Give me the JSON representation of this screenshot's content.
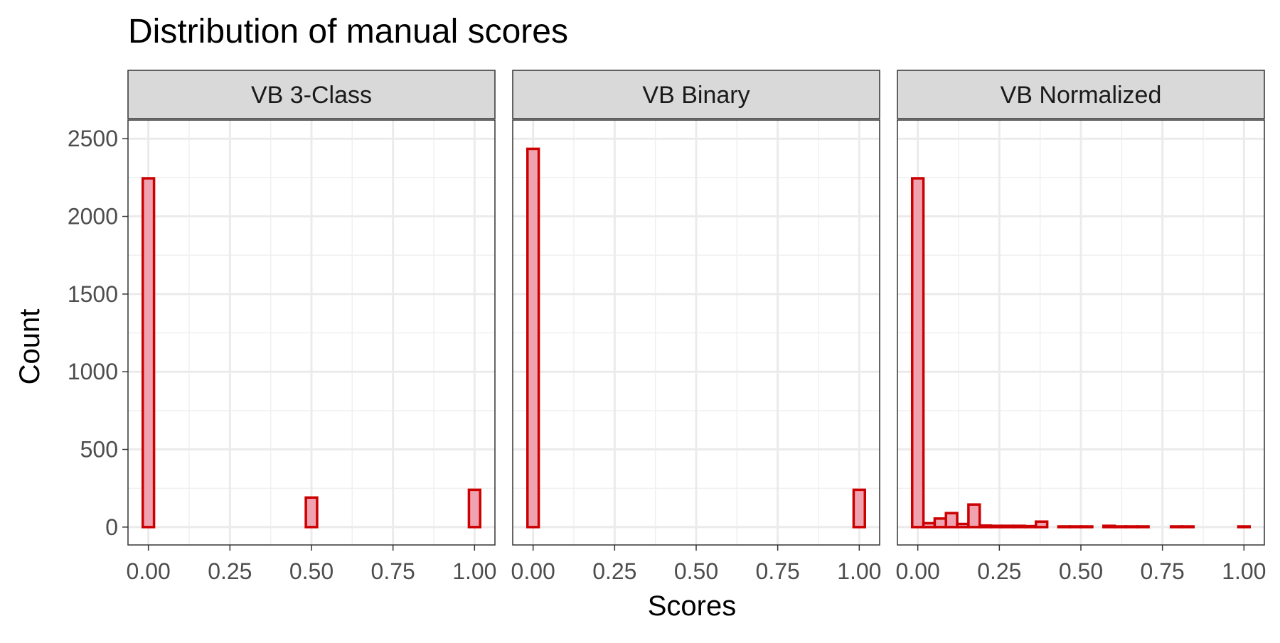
{
  "chart_data": {
    "type": "bar",
    "title": "Distribution of manual scores",
    "xlabel": "Scores",
    "ylabel": "Count",
    "ylim": [
      -115,
      2620
    ],
    "xlim": [
      -0.0625,
      1.0625
    ],
    "yticks": [
      0,
      500,
      1000,
      1500,
      2000,
      2500
    ],
    "ytick_labels": [
      "0",
      "500",
      "1000",
      "1500",
      "2000",
      "2500"
    ],
    "xticks": [
      0,
      0.25,
      0.5,
      0.75,
      1
    ],
    "xtick_labels": [
      "0.00",
      "0.25",
      "0.50",
      "0.75",
      "1.00"
    ],
    "grid": true,
    "bar_fill": "#EFA3B0",
    "bar_stroke": "#CC0000",
    "panel_border": "#333333",
    "strip_fill": "#D9D9D9",
    "panels": [
      {
        "name": "VB 3-Class",
        "binwidth": 0.0345,
        "bins": [
          {
            "x": 0.0,
            "count": 2245
          },
          {
            "x": 0.5,
            "count": 190
          },
          {
            "x": 1.0,
            "count": 240
          }
        ]
      },
      {
        "name": "VB Binary",
        "binwidth": 0.0345,
        "bins": [
          {
            "x": 0.0,
            "count": 2435
          },
          {
            "x": 1.0,
            "count": 240
          }
        ]
      },
      {
        "name": "VB Normalized",
        "binwidth": 0.0345,
        "bins": [
          {
            "x": 0.0,
            "count": 2245
          },
          {
            "x": 0.0345,
            "count": 25
          },
          {
            "x": 0.069,
            "count": 55
          },
          {
            "x": 0.1035,
            "count": 90
          },
          {
            "x": 0.138,
            "count": 20
          },
          {
            "x": 0.1725,
            "count": 145
          },
          {
            "x": 0.207,
            "count": 10
          },
          {
            "x": 0.2415,
            "count": 8
          },
          {
            "x": 0.276,
            "count": 8
          },
          {
            "x": 0.3105,
            "count": 8
          },
          {
            "x": 0.345,
            "count": 6
          },
          {
            "x": 0.3795,
            "count": 35
          },
          {
            "x": 0.4485,
            "count": 4
          },
          {
            "x": 0.483,
            "count": 4
          },
          {
            "x": 0.5175,
            "count": 4
          },
          {
            "x": 0.5865,
            "count": 8
          },
          {
            "x": 0.621,
            "count": 4
          },
          {
            "x": 0.6555,
            "count": 4
          },
          {
            "x": 0.69,
            "count": 4
          },
          {
            "x": 0.7935,
            "count": 4
          },
          {
            "x": 0.828,
            "count": 4
          },
          {
            "x": 1.0,
            "count": 4
          }
        ]
      }
    ]
  }
}
